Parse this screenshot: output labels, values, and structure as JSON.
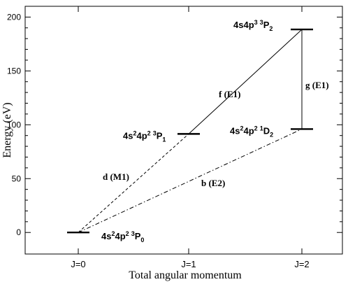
{
  "chart_data": {
    "type": "line",
    "xlabel": "Total angular momentum",
    "ylabel": "Energy (eV)",
    "categories": [
      "J=0",
      "J=1",
      "J=2"
    ],
    "ylim": [
      -20,
      210
    ],
    "yticks": [
      0,
      50,
      100,
      150,
      200
    ],
    "grid": false,
    "levels": [
      {
        "id": "L0",
        "j": 0,
        "energy": 0,
        "label": {
          "config": "4s²4p²",
          "mult": "3",
          "term": "P",
          "jsub": "0"
        }
      },
      {
        "id": "L1",
        "j": 1,
        "energy": 91.5,
        "label": {
          "config": "4s²4p²",
          "mult": "3",
          "term": "P",
          "jsub": "1"
        }
      },
      {
        "id": "L2",
        "j": 2,
        "energy": 96,
        "label": {
          "config": "4s²4p²",
          "mult": "1",
          "term": "D",
          "jsub": "2"
        }
      },
      {
        "id": "L3",
        "j": 2,
        "energy": 188.5,
        "label": {
          "config": "4s4p³",
          "mult": "3",
          "term": "P",
          "jsub": "2"
        }
      }
    ],
    "transitions": [
      {
        "name": "d (M1)",
        "from": "L0",
        "to": "L1",
        "style": "dashed"
      },
      {
        "name": "b (E2)",
        "from": "L0",
        "to": "L2",
        "style": "dashdot"
      },
      {
        "name": "f (E1)",
        "from": "L1",
        "to": "L3",
        "style": "solid"
      },
      {
        "name": "g (E1)",
        "from": "L2",
        "to": "L3",
        "style": "solid"
      }
    ]
  }
}
